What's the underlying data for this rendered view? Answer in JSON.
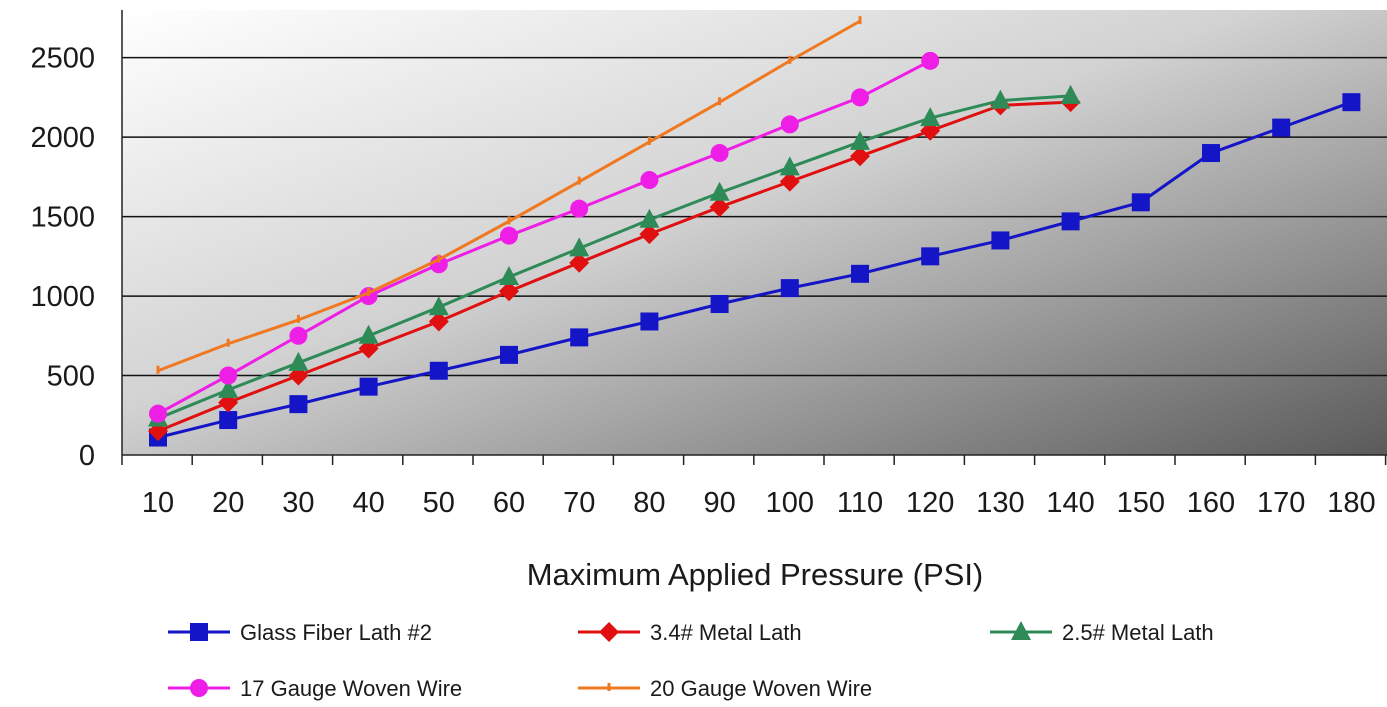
{
  "chart_data": {
    "type": "line",
    "title": "",
    "xlabel": "Maximum Applied Pressure (PSI)",
    "ylabel": "",
    "x_ticks": [
      10,
      20,
      30,
      40,
      50,
      60,
      70,
      80,
      90,
      100,
      110,
      120,
      130,
      140,
      150,
      160,
      170,
      180
    ],
    "y_ticks": [
      0,
      500,
      1000,
      1500,
      2000,
      2500
    ],
    "ylim": [
      0,
      2800
    ],
    "grid": "horizontal",
    "legend_position": "bottom",
    "series": [
      {
        "name": "Glass Fiber Lath #2",
        "color": "#1515c8",
        "marker": "square",
        "x": [
          10,
          20,
          30,
          40,
          50,
          60,
          70,
          80,
          90,
          100,
          110,
          120,
          130,
          140,
          150,
          160,
          170,
          180
        ],
        "values": [
          110,
          220,
          320,
          430,
          530,
          630,
          740,
          840,
          950,
          1050,
          1140,
          1250,
          1350,
          1470,
          1590,
          1900,
          2060,
          2220
        ]
      },
      {
        "name": "3.4# Metal Lath",
        "color": "#e01010",
        "marker": "diamond",
        "x": [
          10,
          20,
          30,
          40,
          50,
          60,
          70,
          80,
          90,
          100,
          110,
          120,
          130,
          140
        ],
        "values": [
          150,
          330,
          500,
          670,
          840,
          1030,
          1210,
          1390,
          1560,
          1720,
          1880,
          2040,
          2200,
          2220
        ]
      },
      {
        "name": "2.5# Metal Lath",
        "color": "#2e8b57",
        "marker": "triangle",
        "x": [
          10,
          20,
          30,
          40,
          50,
          60,
          70,
          80,
          90,
          100,
          110,
          120,
          130,
          140
        ],
        "values": [
          230,
          410,
          580,
          750,
          930,
          1120,
          1300,
          1480,
          1650,
          1810,
          1970,
          2120,
          2230,
          2260
        ]
      },
      {
        "name": "17 Gauge Woven Wire",
        "color": "#ee1ee6",
        "marker": "circle",
        "x": [
          10,
          20,
          30,
          40,
          50,
          60,
          70,
          80,
          90,
          100,
          110,
          120
        ],
        "values": [
          260,
          500,
          750,
          1000,
          1200,
          1380,
          1550,
          1730,
          1900,
          2080,
          2250,
          2480
        ]
      },
      {
        "name": "20 Gauge Woven Wire",
        "color": "#f07820",
        "marker": "tick",
        "x": [
          10,
          20,
          30,
          40,
          50,
          60,
          70,
          80,
          90,
          100,
          110
        ],
        "values": [
          530,
          700,
          850,
          1020,
          1230,
          1470,
          1720,
          1970,
          2220,
          2480,
          2730
        ]
      }
    ]
  }
}
